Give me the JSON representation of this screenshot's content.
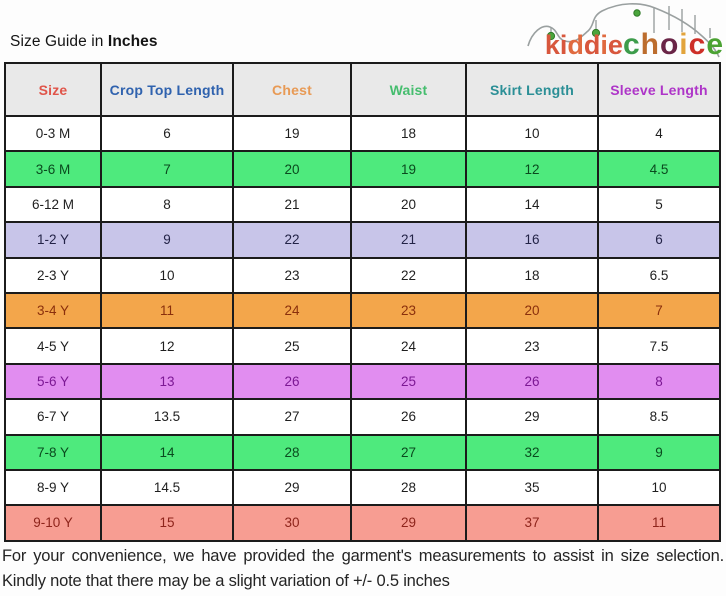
{
  "title": {
    "prefix": "Size Guide in ",
    "bold": "Inches"
  },
  "logo": {
    "name": "kiddiechoice",
    "word1_letters": [
      {
        "ch": "k",
        "color": "#d8573d"
      },
      {
        "ch": "i",
        "color": "#d8573d"
      },
      {
        "ch": "d",
        "color": "#e06a3f"
      },
      {
        "ch": "d",
        "color": "#d8573d"
      },
      {
        "ch": "i",
        "color": "#e06a3f"
      },
      {
        "ch": "e",
        "color": "#d8573d"
      }
    ],
    "word2_letters": [
      {
        "ch": "c",
        "color": "#3d9c4b"
      },
      {
        "ch": "h",
        "color": "#bc6d2e"
      },
      {
        "ch": "o",
        "color": "#6a2547"
      },
      {
        "ch": "i",
        "color": "#e2a43c"
      },
      {
        "ch": "c",
        "color": "#cd2f28"
      },
      {
        "ch": "e",
        "color": "#4ba233"
      }
    ],
    "coaster_color": "#9aa0a0",
    "ball_color": "#4aa53c"
  },
  "table": {
    "headers": [
      {
        "label": "Size",
        "color": "#e0554a"
      },
      {
        "label": "Crop Top Length",
        "color": "#2f62ae"
      },
      {
        "label": "Chest",
        "color": "#e89a55"
      },
      {
        "label": "Waist",
        "color": "#45bd6e"
      },
      {
        "label": "Skirt Length",
        "color": "#2b8f96"
      },
      {
        "label": "Sleeve Length",
        "color": "#ae35c8"
      }
    ],
    "rows": [
      {
        "size": "0-3 M",
        "values": [
          "6",
          "19",
          "18",
          "10",
          "4"
        ],
        "bg": "#ffffff",
        "fg": "#1f1f1f"
      },
      {
        "size": "3-6 M",
        "values": [
          "7",
          "20",
          "19",
          "12",
          "4.5"
        ],
        "bg": "#4eea7d",
        "fg": "#0a4a1e"
      },
      {
        "size": "6-12 M",
        "values": [
          "8",
          "21",
          "20",
          "14",
          "5"
        ],
        "bg": "#ffffff",
        "fg": "#1f1f1f"
      },
      {
        "size": "1-2 Y",
        "values": [
          "9",
          "22",
          "21",
          "16",
          "6"
        ],
        "bg": "#c8c5e9",
        "fg": "#232347"
      },
      {
        "size": "2-3 Y",
        "values": [
          "10",
          "23",
          "22",
          "18",
          "6.5"
        ],
        "bg": "#ffffff",
        "fg": "#1f1f1f"
      },
      {
        "size": "3-4 Y",
        "values": [
          "11",
          "24",
          "23",
          "20",
          "7"
        ],
        "bg": "#f3a64b",
        "fg": "#8a2f0c"
      },
      {
        "size": "4-5 Y",
        "values": [
          "12",
          "25",
          "24",
          "23",
          "7.5"
        ],
        "bg": "#ffffff",
        "fg": "#1f1f1f"
      },
      {
        "size": "5-6 Y",
        "values": [
          "13",
          "26",
          "25",
          "26",
          "8"
        ],
        "bg": "#e18df0",
        "fg": "#7c1894"
      },
      {
        "size": "6-7 Y",
        "values": [
          "13.5",
          "27",
          "26",
          "29",
          "8.5"
        ],
        "bg": "#ffffff",
        "fg": "#1f1f1f"
      },
      {
        "size": "7-8 Y",
        "values": [
          "14",
          "28",
          "27",
          "32",
          "9"
        ],
        "bg": "#4eea7d",
        "fg": "#0a4a1e"
      },
      {
        "size": "8-9 Y",
        "values": [
          "14.5",
          "29",
          "28",
          "35",
          "10"
        ],
        "bg": "#ffffff",
        "fg": "#1f1f1f"
      },
      {
        "size": "9-10 Y",
        "values": [
          "15",
          "30",
          "29",
          "37",
          "11"
        ],
        "bg": "#f79d92",
        "fg": "#8e241b"
      }
    ]
  },
  "footer": {
    "text": "For your convenience, we have provided the garment's measurements to assist in size selection. Kindly note that there may be a slight variation of +/- 0.5 inches"
  }
}
